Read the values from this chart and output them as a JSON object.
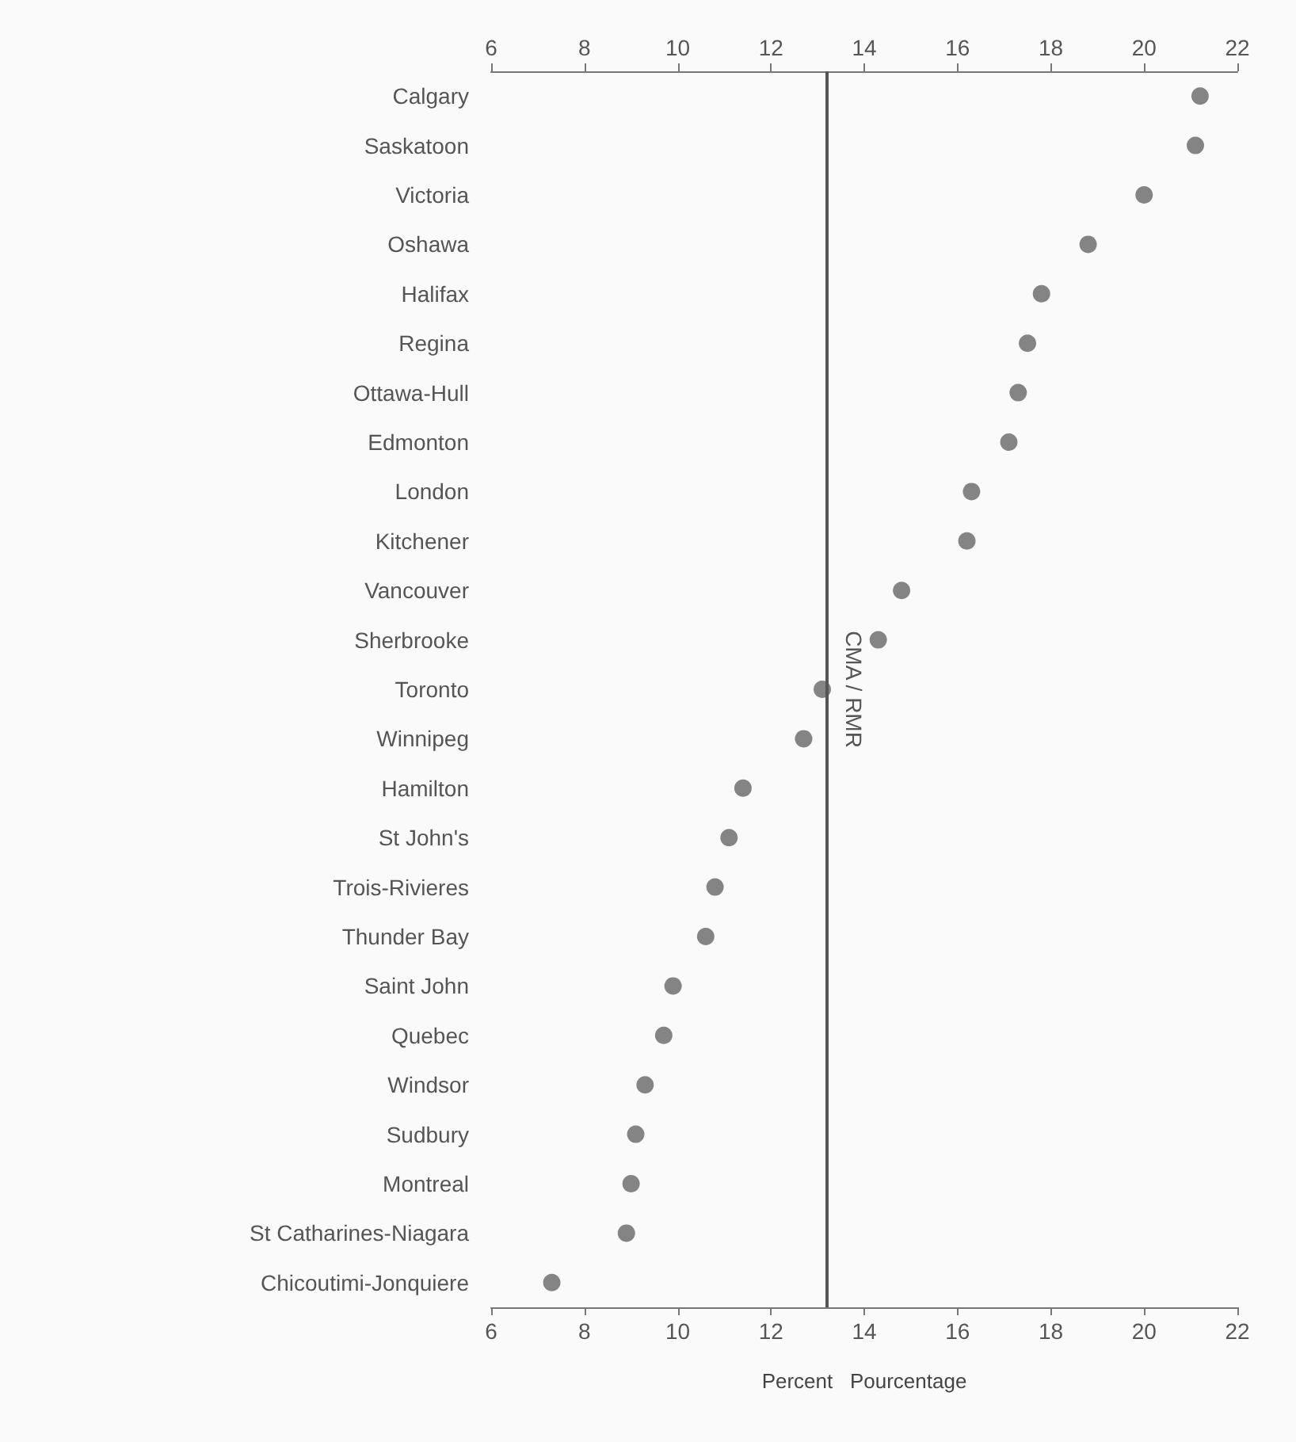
{
  "chart_data": {
    "type": "scatter",
    "orientation": "horizontal",
    "xlabel": "Percent   Pourcentage",
    "categories": [
      "Calgary",
      "Saskatoon",
      "Victoria",
      "Oshawa",
      "Halifax",
      "Regina",
      "Ottawa-Hull",
      "Edmonton",
      "London",
      "Kitchener",
      "Vancouver",
      "Sherbrooke",
      "Toronto",
      "Winnipeg",
      "Hamilton",
      "St John's",
      "Trois-Rivieres",
      "Thunder Bay",
      "Saint John",
      "Quebec",
      "Windsor",
      "Sudbury",
      "Montreal",
      "St Catharines-Niagara",
      "Chicoutimi-Jonquiere"
    ],
    "series": [
      {
        "color": "#666666",
        "values": [
          21.2,
          21.1,
          20.0,
          18.8,
          17.8,
          17.5,
          17.3,
          17.1,
          16.3,
          16.2,
          14.8,
          14.3,
          13.1,
          12.7,
          11.4,
          11.1,
          10.8,
          10.6,
          9.9,
          9.7,
          9.3,
          9.1,
          9.0,
          8.9,
          7.3
        ]
      }
    ],
    "xlim": [
      6,
      22
    ],
    "xticks": [
      6,
      8,
      10,
      12,
      14,
      16,
      18,
      20,
      22
    ],
    "x2lim": [
      6,
      22
    ],
    "x2ticks": [
      6,
      8,
      10,
      12,
      14,
      16,
      18,
      20,
      22
    ],
    "ref_lines": [
      {
        "axis": "x",
        "value": 13.2,
        "label": "CMA / RMR",
        "color": "#555555"
      }
    ],
    "marker": "circle",
    "grid": false
  }
}
